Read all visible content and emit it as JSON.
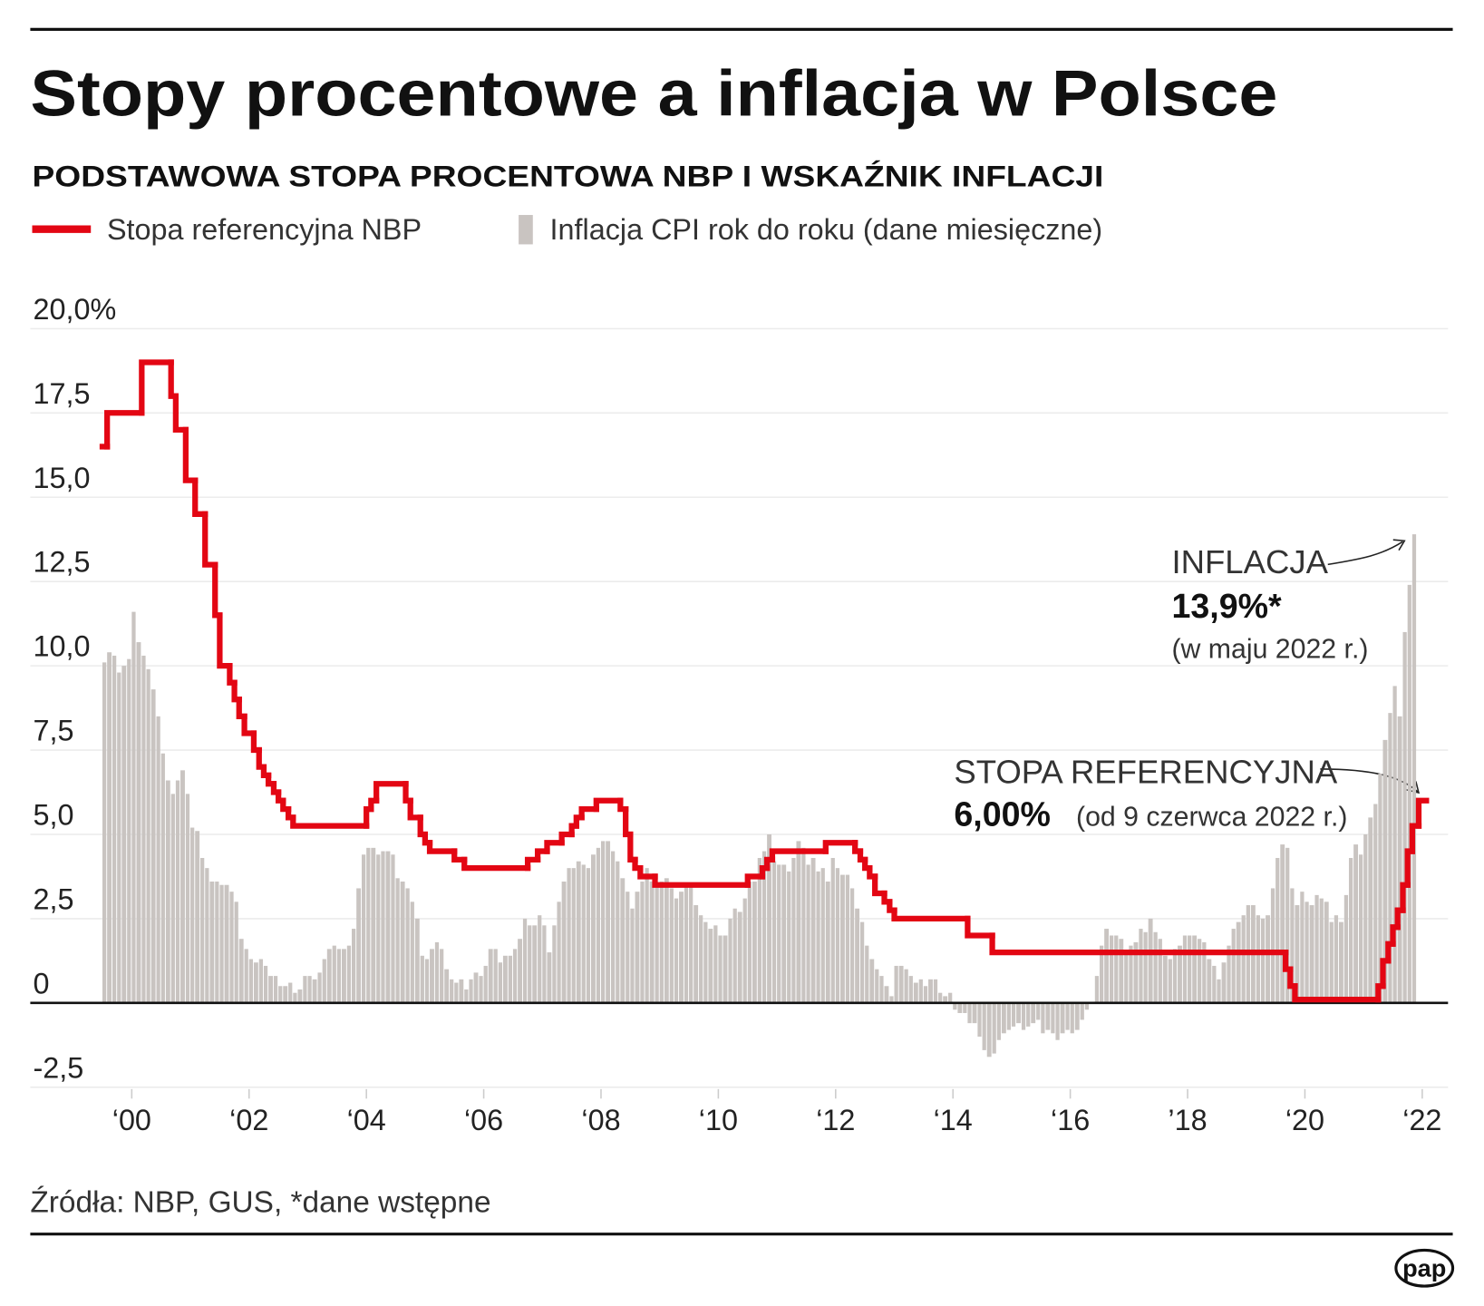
{
  "chart_data": {
    "type": "bar-step",
    "title": "Stopy procentowe a inflacja w Polsce",
    "subtitle": "PODSTAWOWA STOPA PROCENTOWA NBP I WSKAŹNIK INFLACJI",
    "source": "Źródła: NBP, GUS, *dane wstępne",
    "logo": "pap",
    "xlim": [
      1998.77,
      2022.94
    ],
    "xticks": [
      {
        "value": 2000.5,
        "label": "‘00"
      },
      {
        "value": 2002.5,
        "label": "‘02"
      },
      {
        "value": 2004.5,
        "label": "‘04"
      },
      {
        "value": 2006.5,
        "label": "‘06"
      },
      {
        "value": 2008.5,
        "label": "‘08"
      },
      {
        "value": 2010.5,
        "label": "‘10"
      },
      {
        "value": 2012.5,
        "label": "‘12"
      },
      {
        "value": 2014.5,
        "label": "‘14"
      },
      {
        "value": 2016.5,
        "label": "‘16"
      },
      {
        "value": 2018.5,
        "label": "’18"
      },
      {
        "value": 2020.5,
        "label": "‘20"
      },
      {
        "value": 2022.5,
        "label": "‘22"
      }
    ],
    "ylim": [
      -2.5,
      20
    ],
    "yticks": [
      {
        "value": 20,
        "label": "20,0%"
      },
      {
        "value": 17.5,
        "label": "17,5"
      },
      {
        "value": 15,
        "label": "15,0"
      },
      {
        "value": 12.5,
        "label": "12,5"
      },
      {
        "value": 10,
        "label": "10,0"
      },
      {
        "value": 7.5,
        "label": "7,5"
      },
      {
        "value": 5,
        "label": "5,0"
      },
      {
        "value": 2.5,
        "label": "2,5"
      },
      0,
      {
        "value": -2.5,
        "label": "-2,5"
      }
    ],
    "grid": true,
    "series": [
      {
        "name": "Stopa referencyjna NBP",
        "type": "step",
        "color": "#e30613",
        "x": [
          2000,
          2000.08,
          2000.67,
          2001.17,
          2001.25,
          2001.42,
          2001.58,
          2001.75,
          2001.92,
          2002.0,
          2002.17,
          2002.25,
          2002.33,
          2002.42,
          2002.58,
          2002.67,
          2002.75,
          2002.83,
          2002.92,
          2003.0,
          2003.08,
          2003.17,
          2003.25,
          2004.5,
          2004.58,
          2004.67,
          2005.17,
          2005.25,
          2005.42,
          2005.5,
          2005.58,
          2006.0,
          2006.17,
          2007.25,
          2007.42,
          2007.58,
          2007.83,
          2008.0,
          2008.08,
          2008.17,
          2008.42,
          2008.83,
          2008.92,
          2009.0,
          2009.08,
          2009.17,
          2009.42,
          2011.0,
          2011.25,
          2011.33,
          2011.42,
          2012.33,
          2012.83,
          2012.92,
          2013.0,
          2013.08,
          2013.17,
          2013.33,
          2013.42,
          2013.5,
          2014.75,
          2015.17,
          2020.17,
          2020.25,
          2020.33,
          2021.75,
          2021.83,
          2021.92,
          2022.0,
          2022.08,
          2022.17,
          2022.25,
          2022.33,
          2022.44
        ],
        "values": [
          16.5,
          17.5,
          19.0,
          18.0,
          17.0,
          15.5,
          14.5,
          13.0,
          11.5,
          10.0,
          9.5,
          9.0,
          8.5,
          8.0,
          7.5,
          7.0,
          6.75,
          6.5,
          6.25,
          6.0,
          5.75,
          5.5,
          5.25,
          5.75,
          6.0,
          6.5,
          6.0,
          5.5,
          5.0,
          4.75,
          4.5,
          4.25,
          4.0,
          4.25,
          4.5,
          4.75,
          5.0,
          5.25,
          5.5,
          5.75,
          6.0,
          5.75,
          5.0,
          4.25,
          4.0,
          3.75,
          3.5,
          3.75,
          4.0,
          4.25,
          4.5,
          4.75,
          4.5,
          4.25,
          4.0,
          3.75,
          3.25,
          3.0,
          2.75,
          2.5,
          2.0,
          1.5,
          1.0,
          0.5,
          0.1,
          0.5,
          1.25,
          1.75,
          2.25,
          2.75,
          3.5,
          4.5,
          5.25,
          6.0
        ]
      },
      {
        "name": "Inflacja CPI rok do roku (dane miesięczne)",
        "type": "bar",
        "color": "#c9c4c1",
        "x": [
          2000,
          2000.08,
          2000.17,
          2000.25,
          2000.33,
          2000.42,
          2000.5,
          2000.58,
          2000.67,
          2000.75,
          2000.83,
          2000.92,
          2001,
          2001.08,
          2001.17,
          2001.25,
          2001.33,
          2001.42,
          2001.5,
          2001.58,
          2001.67,
          2001.75,
          2001.83,
          2001.92,
          2002,
          2002.08,
          2002.17,
          2002.25,
          2002.33,
          2002.42,
          2002.5,
          2002.58,
          2002.67,
          2002.75,
          2002.83,
          2002.92,
          2003,
          2003.08,
          2003.17,
          2003.25,
          2003.33,
          2003.42,
          2003.5,
          2003.58,
          2003.67,
          2003.75,
          2003.83,
          2003.92,
          2004,
          2004.08,
          2004.17,
          2004.25,
          2004.33,
          2004.42,
          2004.5,
          2004.58,
          2004.67,
          2004.75,
          2004.83,
          2004.92,
          2005,
          2005.08,
          2005.17,
          2005.25,
          2005.33,
          2005.42,
          2005.5,
          2005.58,
          2005.67,
          2005.75,
          2005.83,
          2005.92,
          2006,
          2006.08,
          2006.17,
          2006.25,
          2006.33,
          2006.42,
          2006.5,
          2006.58,
          2006.67,
          2006.75,
          2006.83,
          2006.92,
          2007,
          2007.08,
          2007.17,
          2007.25,
          2007.33,
          2007.42,
          2007.5,
          2007.58,
          2007.67,
          2007.75,
          2007.83,
          2007.92,
          2008,
          2008.08,
          2008.17,
          2008.25,
          2008.33,
          2008.42,
          2008.5,
          2008.58,
          2008.67,
          2008.75,
          2008.83,
          2008.92,
          2009,
          2009.08,
          2009.17,
          2009.25,
          2009.33,
          2009.42,
          2009.5,
          2009.58,
          2009.67,
          2009.75,
          2009.83,
          2009.92,
          2010,
          2010.08,
          2010.17,
          2010.25,
          2010.33,
          2010.42,
          2010.5,
          2010.58,
          2010.67,
          2010.75,
          2010.83,
          2010.92,
          2011,
          2011.08,
          2011.17,
          2011.25,
          2011.33,
          2011.42,
          2011.5,
          2011.58,
          2011.67,
          2011.75,
          2011.83,
          2011.92,
          2012,
          2012.08,
          2012.17,
          2012.25,
          2012.33,
          2012.42,
          2012.5,
          2012.58,
          2012.67,
          2012.75,
          2012.83,
          2012.92,
          2013,
          2013.08,
          2013.17,
          2013.25,
          2013.33,
          2013.42,
          2013.5,
          2013.58,
          2013.67,
          2013.75,
          2013.83,
          2013.92,
          2014,
          2014.08,
          2014.17,
          2014.25,
          2014.33,
          2014.42,
          2014.5,
          2014.58,
          2014.67,
          2014.75,
          2014.83,
          2014.92,
          2015,
          2015.08,
          2015.17,
          2015.25,
          2015.33,
          2015.42,
          2015.5,
          2015.58,
          2015.67,
          2015.75,
          2015.83,
          2015.92,
          2016,
          2016.08,
          2016.17,
          2016.25,
          2016.33,
          2016.42,
          2016.5,
          2016.58,
          2016.67,
          2016.75,
          2016.83,
          2016.92,
          2017,
          2017.08,
          2017.17,
          2017.25,
          2017.33,
          2017.42,
          2017.5,
          2017.58,
          2017.67,
          2017.75,
          2017.83,
          2017.92,
          2018,
          2018.08,
          2018.17,
          2018.25,
          2018.33,
          2018.42,
          2018.5,
          2018.58,
          2018.67,
          2018.75,
          2018.83,
          2018.92,
          2019,
          2019.08,
          2019.17,
          2019.25,
          2019.33,
          2019.42,
          2019.5,
          2019.58,
          2019.67,
          2019.75,
          2019.83,
          2019.92,
          2020,
          2020.08,
          2020.17,
          2020.25,
          2020.33,
          2020.42,
          2020.5,
          2020.58,
          2020.67,
          2020.75,
          2020.83,
          2020.92,
          2021,
          2021.08,
          2021.17,
          2021.25,
          2021.33,
          2021.42,
          2021.5,
          2021.58,
          2021.67,
          2021.75,
          2021.83,
          2021.92,
          2022,
          2022.08,
          2022.17,
          2022.25,
          2022.33
        ],
        "values": [
          10.1,
          10.4,
          10.3,
          9.8,
          10.0,
          10.2,
          11.6,
          10.7,
          10.3,
          9.9,
          9.3,
          8.5,
          7.4,
          6.6,
          6.2,
          6.6,
          6.9,
          6.2,
          5.2,
          5.1,
          4.3,
          4.0,
          3.6,
          3.6,
          3.5,
          3.5,
          3.3,
          3.0,
          1.9,
          1.6,
          1.3,
          1.2,
          1.3,
          1.1,
          0.8,
          0.8,
          0.5,
          0.5,
          0.6,
          0.3,
          0.4,
          0.8,
          0.8,
          0.7,
          0.9,
          1.3,
          1.6,
          1.7,
          1.6,
          1.6,
          1.7,
          2.2,
          3.4,
          4.4,
          4.6,
          4.6,
          4.4,
          4.5,
          4.5,
          4.4,
          3.7,
          3.6,
          3.4,
          3.0,
          2.5,
          1.4,
          1.3,
          1.6,
          1.8,
          1.6,
          1.0,
          0.7,
          0.6,
          0.7,
          0.4,
          0.7,
          0.9,
          0.8,
          1.1,
          1.6,
          1.6,
          1.2,
          1.4,
          1.4,
          1.6,
          1.9,
          2.5,
          2.3,
          2.3,
          2.6,
          2.3,
          1.5,
          2.3,
          3.0,
          3.6,
          4.0,
          4.0,
          4.2,
          4.1,
          4.0,
          4.4,
          4.6,
          4.8,
          4.8,
          4.5,
          4.2,
          3.7,
          3.3,
          2.8,
          3.3,
          3.6,
          4.0,
          3.6,
          3.5,
          3.6,
          3.7,
          3.4,
          3.1,
          3.3,
          3.5,
          3.5,
          2.9,
          2.6,
          2.4,
          2.2,
          2.3,
          2.0,
          2.0,
          2.5,
          2.8,
          2.7,
          3.1,
          3.6,
          3.6,
          4.3,
          4.5,
          5.0,
          4.2,
          4.1,
          4.1,
          3.9,
          4.3,
          4.8,
          4.6,
          4.1,
          4.3,
          3.9,
          4.0,
          3.6,
          4.3,
          4.0,
          3.8,
          3.8,
          3.4,
          2.8,
          2.4,
          1.7,
          1.3,
          1.0,
          0.8,
          0.5,
          0.2,
          1.1,
          1.1,
          1.0,
          0.8,
          0.6,
          0.7,
          0.5,
          0.7,
          0.7,
          0.3,
          0.2,
          0.3,
          -0.2,
          -0.3,
          -0.3,
          -0.6,
          -0.6,
          -1.0,
          -1.4,
          -1.6,
          -1.5,
          -1.1,
          -0.9,
          -0.8,
          -0.7,
          -0.6,
          -0.8,
          -0.7,
          -0.6,
          -0.5,
          -0.9,
          -0.8,
          -0.9,
          -1.1,
          -0.9,
          -0.8,
          -0.9,
          -0.8,
          -0.5,
          -0.2,
          0.0,
          0.8,
          1.7,
          2.2,
          2.0,
          2.0,
          1.9,
          1.5,
          1.7,
          1.8,
          2.2,
          2.1,
          2.5,
          2.1,
          1.9,
          1.4,
          1.3,
          1.6,
          1.7,
          2.0,
          2.0,
          2.0,
          1.9,
          1.8,
          1.3,
          1.1,
          0.7,
          1.2,
          1.7,
          2.2,
          2.4,
          2.6,
          2.9,
          2.9,
          2.6,
          2.5,
          2.6,
          3.4,
          4.3,
          4.7,
          4.6,
          3.4,
          2.9,
          3.3,
          3.0,
          2.9,
          3.2,
          3.1,
          3.0,
          2.4,
          2.6,
          2.4,
          3.2,
          4.3,
          4.7,
          4.4,
          5.0,
          5.5,
          5.9,
          6.8,
          7.8,
          8.6,
          9.4,
          8.5,
          11.0,
          12.4,
          13.9
        ]
      }
    ],
    "annotations": [
      {
        "title": "INFLACJA",
        "value": "13,9%*",
        "note": "(w maju 2022 r.)"
      },
      {
        "title": "STOPA REFERENCYJNA",
        "value": "6,00%",
        "note": "(od 9 czerwca 2022 r.)"
      }
    ]
  }
}
